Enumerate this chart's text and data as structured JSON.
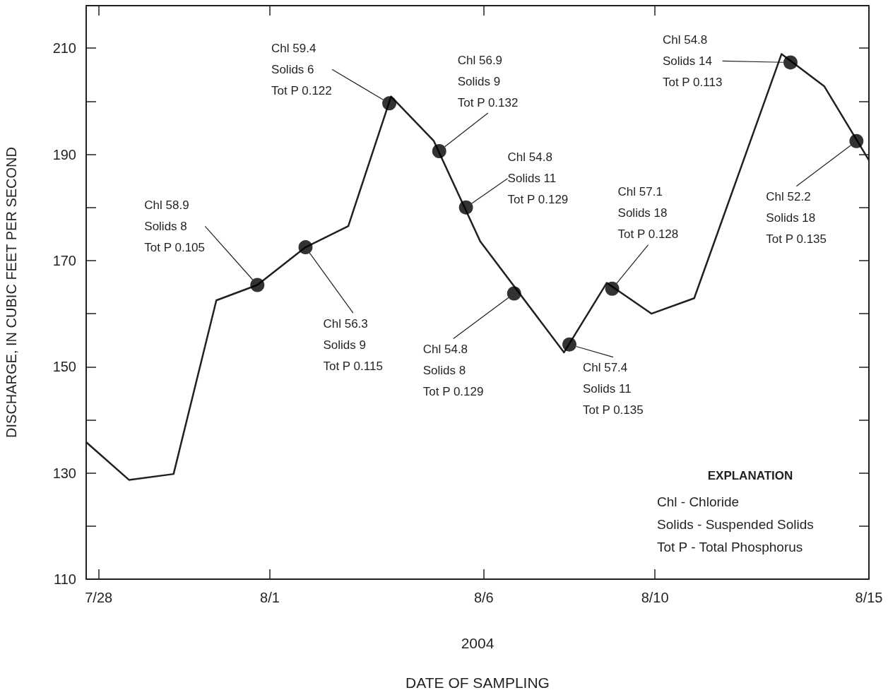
{
  "chart_data": {
    "type": "line",
    "xlabel": "2004\nDATE OF SAMPLING",
    "ylabel": "DISCHARGE, IN CUBIC FEET PER SECOND",
    "xlim": [
      "2004-07-27T17:00",
      "2004-08-15T00:00"
    ],
    "xticks": [
      {
        "value": "2004-07-28",
        "label": "7/28"
      },
      {
        "value": "2004-08-01",
        "label": "8/1"
      },
      {
        "value": "2004-08-06",
        "label": "8/6"
      },
      {
        "value": "2004-08-10",
        "label": "8/10"
      },
      {
        "value": "2004-08-15",
        "label": "8/15"
      }
    ],
    "ylim": [
      110,
      218
    ],
    "yticks": [
      110,
      {
        "value": 120,
        "label": null
      },
      130,
      {
        "value": 140,
        "label": null
      },
      150,
      {
        "value": 160,
        "label": null
      },
      170,
      {
        "value": 180,
        "label": null
      },
      190,
      {
        "value": 200,
        "label": null
      },
      210
    ],
    "grid": false,
    "series": [
      {
        "color": "#231f20",
        "marker": "none",
        "x": [
          "2004-07-27T17:00",
          "2004-07-28T17:00",
          "2004-07-29T18:00",
          "2004-07-30T18:00",
          "2004-07-31T17:00",
          "2004-08-01T20:00",
          "2004-08-02T20:00",
          "2004-08-03T20:00",
          "2004-08-04T20:00",
          "2004-08-05T22:00",
          "2004-08-07T21:00",
          "2004-08-08T21:00",
          "2004-08-09T22:00",
          "2004-08-10T22:00",
          "2004-08-12T23:00",
          "2004-08-13T23:00",
          "2004-08-15T00:00"
        ],
        "values": [
          135.8,
          128.7,
          129.8,
          162.5,
          165.4,
          172.5,
          176.5,
          200.9,
          192.5,
          173.6,
          152.7,
          165.8,
          160.0,
          162.9,
          208.9,
          202.8,
          188.9
        ]
      },
      {
        "type": "scatter",
        "marker": "circle",
        "color": "#000000",
        "x": [
          "2004-07-31T17:00",
          "2004-08-01T20:00",
          "2004-08-03T19:00",
          "2004-08-04T23:00",
          "2004-08-05T14:00",
          "2004-08-06T17:00",
          "2004-08-08T00:00",
          "2004-08-09T00:00",
          "2004-08-13T04:00",
          "2004-08-14T17:00"
        ],
        "values": [
          165.4,
          172.5,
          199.6,
          190.6,
          180.0,
          163.8,
          154.2,
          164.7,
          207.3,
          192.5
        ],
        "value_labels": [
          "Chl 58.9\nSolids 8\nTot P 0.105",
          "Chl 56.3\nSolids 9\nTot P 0.115",
          "Chl 59.4\nSolids 6\nTot P 0.122",
          "Chl 56.9\nSolids 9\nTot P 0.132",
          "Chl 54.8\nSolids 11\nTot P 0.129",
          "Chl 54.8\nSolids 8\nTot P 0.129",
          "Chl 57.4\nSolids 11\nTot P 0.135",
          "Chl 57.1\nSolids 18\nTot P 0.128",
          "Chl 54.8\nSolids 14\nTot P 0.113",
          "Chl 52.2\nSolids 18\nTot P 0.135"
        ]
      }
    ],
    "annotations": [
      "EXPLANATION",
      "Chl - Chloride",
      "Solids - Suspended Solids",
      "Tot P - Total Phosphorus"
    ]
  }
}
